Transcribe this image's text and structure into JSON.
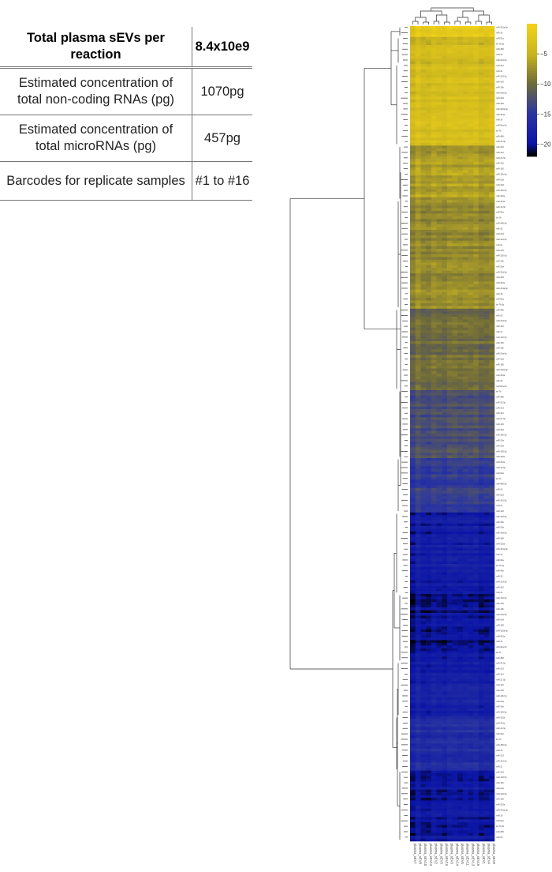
{
  "summary_table": {
    "header": {
      "label": "Total plasma sEVs per reaction",
      "value": "8.4x10e9"
    },
    "rows": [
      {
        "label": "Estimated concentration of total non-coding RNAs (pg)",
        "value": "1070pg"
      },
      {
        "label": "Estimated concentration of total microRNAs (pg)",
        "value": "457pg"
      },
      {
        "label": "Barcodes for replicate samples",
        "value": "#1 to #16"
      }
    ]
  },
  "chart_data": {
    "type": "heatmap",
    "title": "",
    "xlabel": "",
    "ylabel": "",
    "colorscale": {
      "min": -22,
      "max": 0,
      "stops": [
        {
          "value": -22,
          "color": "#000000"
        },
        {
          "value": -20,
          "color": "#0a14a6"
        },
        {
          "value": -15,
          "color": "#2a35a0"
        },
        {
          "value": -10,
          "color": "#6e6a3a"
        },
        {
          "value": -5,
          "color": "#c8b41e"
        },
        {
          "value": 0,
          "color": "#f2d21a"
        }
      ],
      "ticks": [
        -5,
        -10,
        -15,
        -20
      ],
      "tick_labels": [
        "−5",
        "−10",
        "−15",
        "−20"
      ]
    },
    "columns_count": 16,
    "rows_count": 300,
    "column_labels": [
      "plasma_sEV7",
      "plasma_sEV8",
      "plasma_sEV10",
      "plasma_sEV12",
      "plasma_sEV2",
      "plasma_sEV6",
      "plasma_sEV16",
      "plasma_sEV3",
      "plasma_sEV14",
      "plasma_sEV5",
      "plasma_sEV11",
      "plasma_sEV13",
      "plasma_sEV15",
      "plasma_sEV1",
      "plasma_sEV4",
      "plasma_sEV9"
    ],
    "row_clusters": [
      {
        "rows": 4,
        "value": -1.5
      },
      {
        "rows": 10,
        "value": -4.0
      },
      {
        "rows": 30,
        "value": -3.5
      },
      {
        "rows": 20,
        "value": -6.5
      },
      {
        "rows": 40,
        "value": -8.0
      },
      {
        "rows": 30,
        "value": -10.0
      },
      {
        "rows": 25,
        "value": -12.5
      },
      {
        "rows": 20,
        "value": -14.5
      },
      {
        "rows": 30,
        "value": -19.0
      },
      {
        "rows": 25,
        "value": -20.0
      },
      {
        "rows": 20,
        "value": -18.5
      },
      {
        "rows": 20,
        "value": -16.5
      },
      {
        "rows": 26,
        "value": -19.5
      }
    ]
  }
}
